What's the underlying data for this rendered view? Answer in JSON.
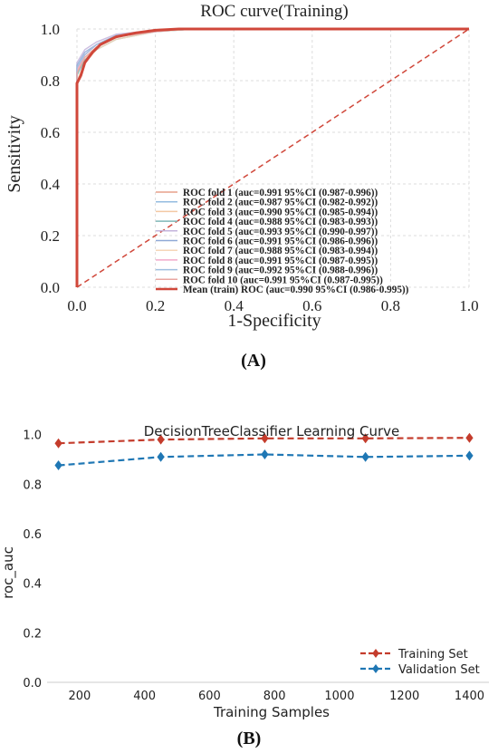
{
  "chart_data": [
    {
      "panel_label": "(A)",
      "type": "line",
      "title": "ROC curve(Training)",
      "xlabel": "1-Specificity",
      "ylabel": "Sensitivity",
      "xlim": [
        0.0,
        1.0
      ],
      "ylim": [
        0.0,
        1.0
      ],
      "x_ticks": [
        "0.0",
        "0.2",
        "0.4",
        "0.6",
        "0.8",
        "1.0"
      ],
      "y_ticks": [
        "0.0",
        "0.2",
        "0.4",
        "0.6",
        "0.8",
        "1.0"
      ],
      "grid": true,
      "legend_position": "lower-right",
      "series": [
        {
          "name": "ROC fold    1 (auc=0.991 95%CI (0.987-0.996))",
          "color": "#e7a08c",
          "points": [
            [
              0,
              0
            ],
            [
              0,
              0.83
            ],
            [
              0.02,
              0.88
            ],
            [
              0.05,
              0.93
            ],
            [
              0.1,
              0.97
            ],
            [
              0.15,
              0.985
            ],
            [
              0.25,
              1.0
            ],
            [
              1,
              1
            ]
          ]
        },
        {
          "name": "ROC fold    2 (auc=0.987 95%CI (0.982-0.992))",
          "color": "#94bce0",
          "points": [
            [
              0,
              0
            ],
            [
              0,
              0.85
            ],
            [
              0.02,
              0.9
            ],
            [
              0.05,
              0.94
            ],
            [
              0.1,
              0.97
            ],
            [
              0.2,
              0.99
            ],
            [
              0.3,
              1.0
            ],
            [
              1,
              1
            ]
          ]
        },
        {
          "name": "ROC fold    3 (auc=0.990 95%CI (0.985-0.994))",
          "color": "#f3c9a4",
          "points": [
            [
              0,
              0
            ],
            [
              0,
              0.84
            ],
            [
              0.02,
              0.89
            ],
            [
              0.05,
              0.93
            ],
            [
              0.1,
              0.97
            ],
            [
              0.2,
              0.99
            ],
            [
              0.28,
              1.0
            ],
            [
              1,
              1
            ]
          ]
        },
        {
          "name": "ROC fold    4 (auc=0.988 95%CI (0.983-0.993))",
          "color": "#7fb8b8",
          "points": [
            [
              0,
              0
            ],
            [
              0,
              0.82
            ],
            [
              0.02,
              0.88
            ],
            [
              0.05,
              0.92
            ],
            [
              0.1,
              0.96
            ],
            [
              0.2,
              0.99
            ],
            [
              0.3,
              1.0
            ],
            [
              1,
              1
            ]
          ]
        },
        {
          "name": "ROC fold    5 (auc=0.993 95%CI (0.990-0.997))",
          "color": "#c4b4dc",
          "points": [
            [
              0,
              0
            ],
            [
              0,
              0.87
            ],
            [
              0.02,
              0.92
            ],
            [
              0.05,
              0.95
            ],
            [
              0.1,
              0.98
            ],
            [
              0.2,
              0.995
            ],
            [
              0.25,
              1.0
            ],
            [
              1,
              1
            ]
          ]
        },
        {
          "name": "ROC fold    6 (auc=0.991 95%CI (0.986-0.996))",
          "color": "#8fa9d6",
          "points": [
            [
              0,
              0
            ],
            [
              0,
              0.86
            ],
            [
              0.02,
              0.91
            ],
            [
              0.05,
              0.94
            ],
            [
              0.1,
              0.975
            ],
            [
              0.2,
              0.99
            ],
            [
              0.27,
              1.0
            ],
            [
              1,
              1
            ]
          ]
        },
        {
          "name": "ROC fold    7 (auc=0.988 95%CI (0.983-0.994))",
          "color": "#f6d6b8",
          "points": [
            [
              0,
              0
            ],
            [
              0,
              0.8
            ],
            [
              0.02,
              0.87
            ],
            [
              0.05,
              0.92
            ],
            [
              0.1,
              0.96
            ],
            [
              0.2,
              0.99
            ],
            [
              0.3,
              1.0
            ],
            [
              1,
              1
            ]
          ]
        },
        {
          "name": "ROC fold    8 (auc=0.991 95%CI (0.987-0.995))",
          "color": "#f2a9c9",
          "points": [
            [
              0,
              0
            ],
            [
              0,
              0.84
            ],
            [
              0.02,
              0.9
            ],
            [
              0.05,
              0.94
            ],
            [
              0.1,
              0.97
            ],
            [
              0.2,
              0.99
            ],
            [
              0.27,
              1.0
            ],
            [
              1,
              1
            ]
          ]
        },
        {
          "name": "ROC fold    9 (auc=0.992 95%CI (0.988-0.996))",
          "color": "#9fbfdf",
          "points": [
            [
              0,
              0
            ],
            [
              0,
              0.85
            ],
            [
              0.02,
              0.9
            ],
            [
              0.05,
              0.94
            ],
            [
              0.1,
              0.975
            ],
            [
              0.2,
              0.99
            ],
            [
              0.26,
              1.0
            ],
            [
              1,
              1
            ]
          ]
        },
        {
          "name": "ROC fold    10 (auc=0.991 95%CI (0.987-0.995))",
          "color": "#e9a6a0",
          "points": [
            [
              0,
              0
            ],
            [
              0,
              0.83
            ],
            [
              0.02,
              0.89
            ],
            [
              0.05,
              0.93
            ],
            [
              0.1,
              0.97
            ],
            [
              0.2,
              0.99
            ],
            [
              0.27,
              1.0
            ],
            [
              1,
              1
            ]
          ]
        },
        {
          "name": "Mean (train) ROC (auc=0.990 95%CI (0.986-0.995))",
          "color": "#d0473a",
          "mean": true,
          "points": [
            [
              0,
              0
            ],
            [
              0,
              0.79
            ],
            [
              0.01,
              0.82
            ],
            [
              0.02,
              0.87
            ],
            [
              0.04,
              0.91
            ],
            [
              0.06,
              0.94
            ],
            [
              0.1,
              0.97
            ],
            [
              0.15,
              0.985
            ],
            [
              0.2,
              0.995
            ],
            [
              0.26,
              1.0
            ],
            [
              1,
              1
            ]
          ]
        }
      ],
      "reference_line": {
        "color": "#d0473a",
        "points": [
          [
            0,
            0
          ],
          [
            1,
            1
          ]
        ]
      }
    },
    {
      "panel_label": "(B)",
      "type": "line",
      "title": "DecisionTreeClassifier Learning Curve",
      "xlabel": "Training Samples",
      "ylabel": "roc_auc",
      "xlim": [
        100,
        1460
      ],
      "ylim": [
        0.0,
        1.05
      ],
      "x_ticks": [
        200,
        400,
        600,
        800,
        1000,
        1200,
        1400
      ],
      "y_ticks": [
        "0.0",
        "0.2",
        "0.4",
        "0.6",
        "0.8",
        "1.0"
      ],
      "grid": false,
      "legend_position": "lower-right",
      "x": [
        135,
        450,
        770,
        1080,
        1400
      ],
      "series": [
        {
          "name": "Training Set",
          "color": "#c43c2c",
          "marker": "diamond",
          "values": [
            0.965,
            0.98,
            0.985,
            0.985,
            0.987
          ]
        },
        {
          "name": "Validation Set",
          "color": "#1f77b4",
          "marker": "diamond",
          "values": [
            0.876,
            0.91,
            0.92,
            0.91,
            0.915
          ]
        }
      ]
    }
  ]
}
